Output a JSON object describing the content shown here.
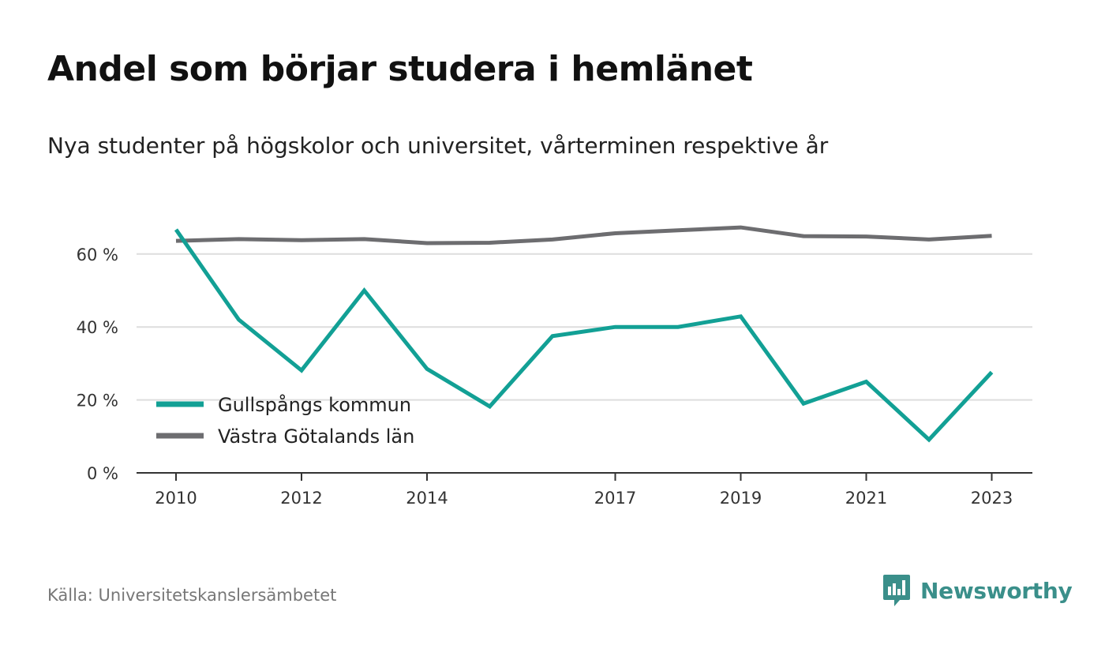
{
  "header": {
    "title": "Andel som börjar studera i hemlänet",
    "subtitle": "Nya studenter på högskolor och universitet, vårterminen respektive år"
  },
  "footer": {
    "source": "Källa: Universitetskanslersämbetet",
    "brand": "Newsworthy",
    "brand_icon": "bar-chart-speech-bubble-icon"
  },
  "colors": {
    "series_1": "#12a095",
    "series_2": "#6d6d70",
    "grid": "#dddddd",
    "axis": "#333333",
    "brand": "#3a8f8a"
  },
  "chart_data": {
    "type": "line",
    "title": "Andel som börjar studera i hemlänet",
    "subtitle": "Nya studenter på högskolor och universitet, vårterminen respektive år",
    "xlabel": "",
    "ylabel": "",
    "x": [
      2010,
      2011,
      2012,
      2013,
      2014,
      2015,
      2016,
      2017,
      2018,
      2019,
      2020,
      2021,
      2022,
      2023
    ],
    "x_ticks": [
      2010,
      2012,
      2014,
      2017,
      2019,
      2021,
      2023
    ],
    "y_ticks": [
      0,
      20,
      40,
      60
    ],
    "y_tick_labels": [
      "0 %",
      "20 %",
      "40 %",
      "60 %"
    ],
    "ylim": [
      0,
      70
    ],
    "grid": "horizontal",
    "legend_position": "bottom-left",
    "series": [
      {
        "name": "Gullspångs kommun",
        "values": [
          66.7,
          42.0,
          28.1,
          50.0,
          28.5,
          18.2,
          37.5,
          40.0,
          40.0,
          42.9,
          19.0,
          25.0,
          9.1,
          27.6
        ]
      },
      {
        "name": "Västra Götalands län",
        "values": [
          63.6,
          64.1,
          63.8,
          64.1,
          63.0,
          63.1,
          64.0,
          65.7,
          66.5,
          67.3,
          64.9,
          64.8,
          64.0,
          65.0
        ]
      }
    ]
  }
}
